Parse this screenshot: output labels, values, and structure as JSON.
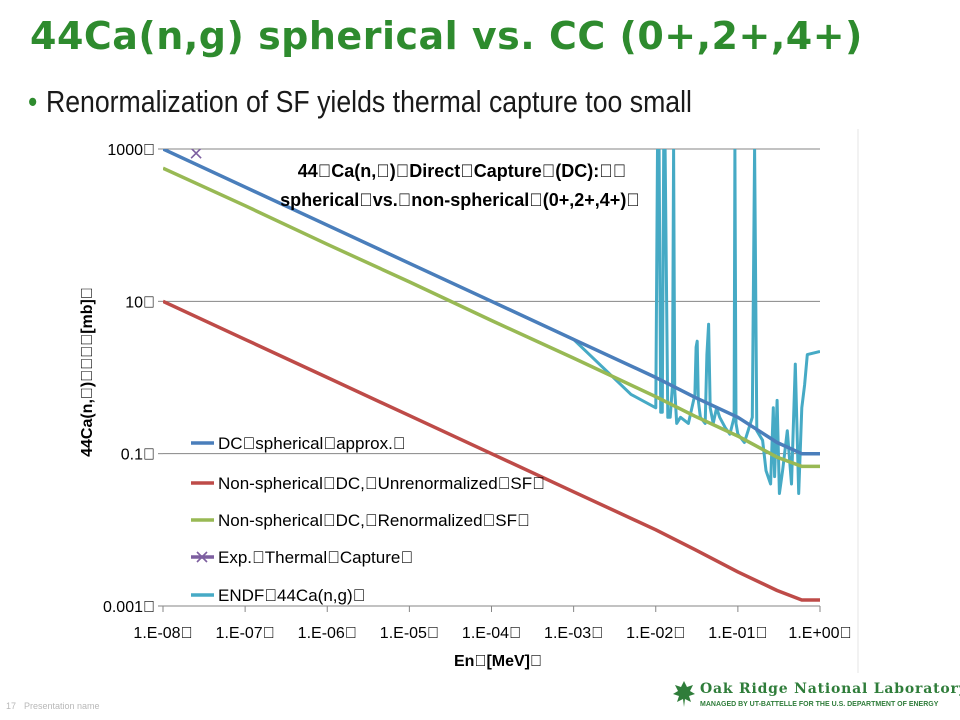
{
  "slide": {
    "title": "44Ca(n,g) spherical vs. CC (0+,2+,4+)",
    "bullet": "Renormalization of SF yields thermal capture too small"
  },
  "footer": {
    "page_number": "17",
    "presentation_name": "Presentation name",
    "org_name": "Oak Ridge National Laboratory",
    "org_tagline": "MANAGED BY UT-BATTELLE FOR THE U.S. DEPARTMENT OF ENERGY"
  },
  "colors": {
    "title_green": "#2e8b2e",
    "dc_spherical": "#4a7ebb",
    "non_spherical_unrenorm": "#be4b48",
    "non_spherical_renorm": "#98b954",
    "exp_thermal": "#7d5fa0",
    "endf": "#46aac5"
  },
  "chart_data": {
    "type": "line",
    "title_line1": "44\u0000Ca(n,\u0000)\u0000Direct\u0000Capture\u0000(DC):\u0000\u0000",
    "title_line2": "spherical\u0000vs.\u0000non-spherical\u0000(0+,2+,4+)\u0000",
    "xlabel": "En\u0000[MeV]\u0000",
    "ylabel": "44Ca(n,\u0000)\u0000\u0000\u0000\u0000[mb]\u0000",
    "x_scale": "log",
    "y_scale": "log",
    "xlim": [
      1e-08,
      1
    ],
    "ylim": [
      0.001,
      1000
    ],
    "x_tick_labels": [
      "1.E-08\u0000",
      "1.E-07\u0000",
      "1.E-06\u0000",
      "1.E-05\u0000",
      "1.E-04\u0000",
      "1.E-03\u0000",
      "1.E-02\u0000",
      "1.E-01\u0000",
      "1.E+00\u0000"
    ],
    "y_tick_labels": [
      "0.001\u0000",
      "0.1\u0000",
      "10\u0000",
      "1000\u0000"
    ],
    "y_tick_values": [
      0.001,
      0.1,
      10,
      1000
    ],
    "grid": "horizontal",
    "legend_position": "lower-left",
    "series": [
      {
        "name": "DC\u0000spherical\u0000approx.\u0000",
        "x": [
          1e-08,
          1e-07,
          1e-06,
          1e-05,
          0.0001,
          0.001,
          0.01,
          0.03,
          0.1,
          0.3,
          0.6,
          1
        ],
        "y": [
          1000,
          316,
          100,
          31.6,
          10,
          3.16,
          1.0,
          0.55,
          0.3,
          0.14,
          0.1,
          0.1
        ]
      },
      {
        "name": "Non-spherical\u0000DC,\u0000Unrenormalized\u0000SF\u0000",
        "x": [
          1e-08,
          1e-07,
          1e-06,
          1e-05,
          0.0001,
          0.001,
          0.01,
          0.03,
          0.1,
          0.3,
          0.6,
          1
        ],
        "y": [
          10,
          3.16,
          1.0,
          0.316,
          0.1,
          0.0316,
          0.01,
          0.0055,
          0.0028,
          0.0016,
          0.0012,
          0.0012
        ]
      },
      {
        "name": "Non-spherical\u0000DC,\u0000Renormalized\u0000SF\u0000",
        "x": [
          1e-08,
          1e-07,
          1e-06,
          1e-05,
          0.0001,
          0.001,
          0.01,
          0.03,
          0.1,
          0.3,
          0.6,
          1
        ],
        "y": [
          560,
          180,
          56,
          18,
          5.6,
          1.8,
          0.56,
          0.31,
          0.17,
          0.09,
          0.068,
          0.068
        ]
      },
      {
        "name": "Exp.\u0000Thermal\u0000Capture\u0000",
        "marker": "x",
        "x": [
          2.53e-08
        ],
        "y": [
          880
        ]
      },
      {
        "name": "ENDF\u000044Ca(n,g)\u0000",
        "x": [
          1e-08,
          1e-07,
          1e-06,
          1e-05,
          0.0001,
          0.001,
          0.005,
          0.01,
          0.0105,
          0.011,
          0.0115,
          0.012,
          0.0125,
          0.013,
          0.014,
          0.015,
          0.016,
          0.0165,
          0.017,
          0.018,
          0.02,
          0.025,
          0.03,
          0.031,
          0.032,
          0.033,
          0.035,
          0.04,
          0.042,
          0.044,
          0.046,
          0.05,
          0.055,
          0.06,
          0.07,
          0.08,
          0.09,
          0.092,
          0.095,
          0.1,
          0.12,
          0.15,
          0.16,
          0.17,
          0.2,
          0.22,
          0.25,
          0.27,
          0.28,
          0.3,
          0.32,
          0.35,
          0.4,
          0.45,
          0.5,
          0.55,
          0.6,
          0.65,
          0.7,
          1
        ],
        "y": [
          1000,
          316,
          100,
          31.6,
          10,
          3.16,
          0.6,
          0.4,
          1000,
          1000,
          0.35,
          0.35,
          1000,
          1000,
          0.3,
          0.3,
          0.8,
          1000,
          0.7,
          0.25,
          0.3,
          0.25,
          0.6,
          2.5,
          3.0,
          0.5,
          0.3,
          0.25,
          2.0,
          5.0,
          0.4,
          0.25,
          0.4,
          0.3,
          0.22,
          0.18,
          0.3,
          1000,
          0.25,
          0.18,
          0.14,
          0.3,
          1000,
          0.2,
          0.15,
          0.06,
          0.04,
          0.4,
          0.05,
          0.5,
          0.03,
          0.06,
          0.2,
          0.04,
          1.5,
          0.03,
          0.4,
          0.8,
          2.0,
          2.2
        ]
      }
    ]
  }
}
